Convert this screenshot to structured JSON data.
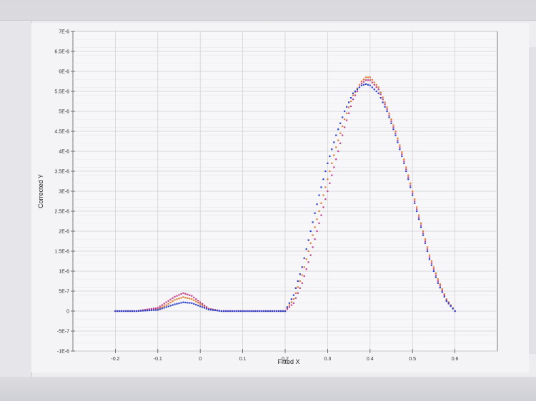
{
  "chart_data": {
    "type": "scatter",
    "title": "",
    "xlabel": "Fitted X",
    "ylabel": "Corrected Y",
    "xlim": [
      -0.3,
      0.7
    ],
    "ylim": [
      -1e-06,
      7e-06
    ],
    "x_ticks": [
      -0.2,
      -0.1,
      0,
      0.1,
      0.2,
      0.3,
      0.4,
      0.5,
      0.6
    ],
    "x_tick_labels": [
      "-0.2",
      "-0.1",
      "0",
      "0.1",
      "0.2",
      "0.3",
      "0.4",
      "0.5",
      "0.6"
    ],
    "y_ticks": [
      -1e-06,
      -5e-07,
      0,
      5e-07,
      1e-06,
      1.5e-06,
      2e-06,
      2.5e-06,
      3e-06,
      3.5e-06,
      4e-06,
      4.5e-06,
      5e-06,
      5.5e-06,
      6e-06,
      6.5e-06,
      7e-06
    ],
    "y_tick_labels": [
      "-1E-6",
      "-5E-7",
      "0",
      "5E-7",
      "1E-6",
      "1.5E-6",
      "2E-6",
      "2.5E-6",
      "3E-6",
      "3.5E-6",
      "4E-6",
      "4.5E-6",
      "5E-6",
      "5.5E-6",
      "6E-6",
      "6.5E-6",
      "7E-6"
    ],
    "grid": true,
    "series": [
      {
        "color": "#e07b2e",
        "points": [
          [
            -0.2,
            0
          ],
          [
            -0.15,
            0
          ],
          [
            -0.1,
            5e-08
          ],
          [
            -0.08,
            1.5e-07
          ],
          [
            -0.06,
            2.8e-07
          ],
          [
            -0.04,
            3.5e-07
          ],
          [
            -0.02,
            3e-07
          ],
          [
            0,
            1.8e-07
          ],
          [
            0.02,
            5e-08
          ],
          [
            0.05,
            0
          ],
          [
            0.1,
            0
          ],
          [
            0.15,
            0
          ],
          [
            0.2,
            0
          ],
          [
            0.22,
            3e-07
          ],
          [
            0.24,
            9e-07
          ],
          [
            0.26,
            1.7e-06
          ],
          [
            0.28,
            2.5e-06
          ],
          [
            0.3,
            3.3e-06
          ],
          [
            0.32,
            4.1e-06
          ],
          [
            0.34,
            4.8e-06
          ],
          [
            0.36,
            5.4e-06
          ],
          [
            0.38,
            5.75e-06
          ],
          [
            0.39,
            5.85e-06
          ],
          [
            0.4,
            5.85e-06
          ],
          [
            0.42,
            5.6e-06
          ],
          [
            0.44,
            5.1e-06
          ],
          [
            0.46,
            4.5e-06
          ],
          [
            0.48,
            3.8e-06
          ],
          [
            0.5,
            3e-06
          ],
          [
            0.52,
            2.2e-06
          ],
          [
            0.54,
            1.4e-06
          ],
          [
            0.56,
            8e-07
          ],
          [
            0.58,
            3e-07
          ],
          [
            0.6,
            0
          ]
        ]
      },
      {
        "color": "#c2408f",
        "points": [
          [
            -0.2,
            0
          ],
          [
            -0.15,
            0
          ],
          [
            -0.1,
            8e-08
          ],
          [
            -0.08,
            2.2e-07
          ],
          [
            -0.06,
            3.6e-07
          ],
          [
            -0.04,
            4.5e-07
          ],
          [
            -0.02,
            3.8e-07
          ],
          [
            0,
            2.2e-07
          ],
          [
            0.02,
            6e-08
          ],
          [
            0.05,
            0
          ],
          [
            0.1,
            0
          ],
          [
            0.15,
            0
          ],
          [
            0.2,
            0
          ],
          [
            0.22,
            2e-07
          ],
          [
            0.24,
            7e-07
          ],
          [
            0.26,
            1.4e-06
          ],
          [
            0.28,
            2.2e-06
          ],
          [
            0.3,
            3e-06
          ],
          [
            0.32,
            3.8e-06
          ],
          [
            0.34,
            4.6e-06
          ],
          [
            0.36,
            5.3e-06
          ],
          [
            0.38,
            5.7e-06
          ],
          [
            0.39,
            5.78e-06
          ],
          [
            0.4,
            5.78e-06
          ],
          [
            0.42,
            5.55e-06
          ],
          [
            0.44,
            5.05e-06
          ],
          [
            0.46,
            4.45e-06
          ],
          [
            0.48,
            3.75e-06
          ],
          [
            0.5,
            2.95e-06
          ],
          [
            0.52,
            2.15e-06
          ],
          [
            0.54,
            1.35e-06
          ],
          [
            0.56,
            7.5e-07
          ],
          [
            0.58,
            2.8e-07
          ],
          [
            0.6,
            0
          ]
        ]
      },
      {
        "color": "#2a3fd1",
        "points": [
          [
            -0.2,
            0
          ],
          [
            -0.15,
            0
          ],
          [
            -0.1,
            3e-08
          ],
          [
            -0.08,
            1e-07
          ],
          [
            -0.06,
            1.7e-07
          ],
          [
            -0.04,
            2.2e-07
          ],
          [
            -0.02,
            2e-07
          ],
          [
            0,
            1.2e-07
          ],
          [
            0.02,
            4e-08
          ],
          [
            0.05,
            0
          ],
          [
            0.1,
            0
          ],
          [
            0.15,
            0
          ],
          [
            0.2,
            0
          ],
          [
            0.22,
            4e-07
          ],
          [
            0.24,
            1.1e-06
          ],
          [
            0.26,
            2e-06
          ],
          [
            0.28,
            2.9e-06
          ],
          [
            0.3,
            3.7e-06
          ],
          [
            0.32,
            4.4e-06
          ],
          [
            0.34,
            5e-06
          ],
          [
            0.36,
            5.45e-06
          ],
          [
            0.38,
            5.65e-06
          ],
          [
            0.39,
            5.68e-06
          ],
          [
            0.4,
            5.65e-06
          ],
          [
            0.42,
            5.45e-06
          ],
          [
            0.44,
            5e-06
          ],
          [
            0.46,
            4.4e-06
          ],
          [
            0.48,
            3.7e-06
          ],
          [
            0.5,
            2.9e-06
          ],
          [
            0.52,
            2.1e-06
          ],
          [
            0.54,
            1.3e-06
          ],
          [
            0.56,
            7e-07
          ],
          [
            0.58,
            2.5e-07
          ],
          [
            0.6,
            0
          ]
        ]
      }
    ]
  }
}
